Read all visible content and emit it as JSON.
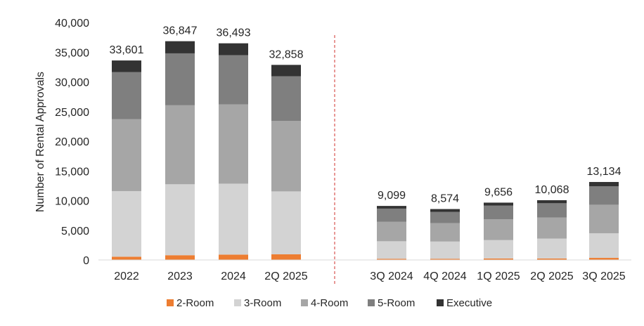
{
  "chart_data": {
    "type": "bar",
    "stacked": true,
    "ylabel": "Number of Rental Approvals",
    "ylim": [
      0,
      40000
    ],
    "yticks": [
      0,
      5000,
      10000,
      15000,
      20000,
      25000,
      30000,
      35000,
      40000
    ],
    "ytick_labels": [
      "0",
      "5,000",
      "10,000",
      "15,000",
      "20,000",
      "25,000",
      "30,000",
      "35,000",
      "40,000"
    ],
    "grid": false,
    "legend_position": "bottom",
    "categories": [
      "2022",
      "2023",
      "2024",
      "2Q 2025",
      "3Q 2024",
      "4Q 2024",
      "1Q 2025",
      "2Q 2025",
      "3Q 2025"
    ],
    "totals": [
      33601,
      36847,
      36493,
      32858,
      9099,
      8574,
      9656,
      10068,
      13134
    ],
    "total_labels": [
      "33,601",
      "36,847",
      "36,493",
      "32,858",
      "9,099",
      "8,574",
      "9,656",
      "10,068",
      "13,134"
    ],
    "divider": {
      "between_categories": [
        "2Q 2025",
        "3Q 2024"
      ],
      "style": "dashed",
      "color": "#d9534f"
    },
    "series": [
      {
        "name": "2-Room",
        "color": "#ed7d31",
        "values": [
          550,
          800,
          900,
          950,
          200,
          200,
          250,
          250,
          350
        ]
      },
      {
        "name": "3-Room",
        "color": "#d3d3d3",
        "values": [
          11050,
          11950,
          11950,
          10600,
          2950,
          2900,
          3100,
          3350,
          4150
        ]
      },
      {
        "name": "4-Room",
        "color": "#a6a6a6",
        "values": [
          12100,
          13300,
          13350,
          11850,
          3300,
          3100,
          3500,
          3550,
          4800
        ]
      },
      {
        "name": "5-Room",
        "color": "#7f7f7f",
        "values": [
          7950,
          8750,
          8300,
          7550,
          2200,
          1900,
          2300,
          2400,
          3100
        ]
      },
      {
        "name": "Executive",
        "color": "#333333",
        "values": [
          1951,
          2047,
          1993,
          1908,
          449,
          474,
          506,
          518,
          734
        ]
      }
    ]
  }
}
